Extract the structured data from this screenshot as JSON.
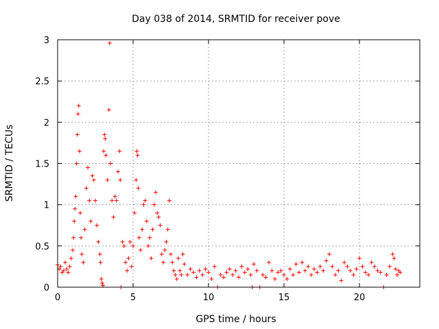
{
  "chart_data": {
    "type": "scatter",
    "title": "Day 038 of 2014, SRMTID for receiver pove",
    "xlabel": "GPS time / hours",
    "ylabel": "SRMTID / TECUs",
    "xlim": [
      0,
      24
    ],
    "ylim": [
      0,
      3
    ],
    "xticks": [
      0,
      5,
      10,
      15,
      20
    ],
    "yticks": [
      0,
      0.5,
      1,
      1.5,
      2,
      2.5,
      3
    ],
    "xtick_labels": [
      "0",
      "5",
      "10",
      "15",
      "20"
    ],
    "ytick_labels": [
      "0",
      "0.5",
      "1",
      "1.5",
      "2",
      "2.5",
      "3"
    ],
    "grid": true,
    "marker": "+",
    "color": "#ff0000",
    "series": [
      {
        "name": "SRMTID",
        "points": [
          [
            0.0,
            0.27
          ],
          [
            0.1,
            0.22
          ],
          [
            0.2,
            0.25
          ],
          [
            0.3,
            0.18
          ],
          [
            0.4,
            0.2
          ],
          [
            0.5,
            0.3
          ],
          [
            0.6,
            0.22
          ],
          [
            0.7,
            0.18
          ],
          [
            0.8,
            0.25
          ],
          [
            0.9,
            0.35
          ],
          [
            1.0,
            0.45
          ],
          [
            1.05,
            0.6
          ],
          [
            1.1,
            0.8
          ],
          [
            1.15,
            0.95
          ],
          [
            1.2,
            1.1
          ],
          [
            1.25,
            1.5
          ],
          [
            1.3,
            1.85
          ],
          [
            1.35,
            2.1
          ],
          [
            1.4,
            2.2
          ],
          [
            1.45,
            1.65
          ],
          [
            1.5,
            0.9
          ],
          [
            1.55,
            0.6
          ],
          [
            1.6,
            0.4
          ],
          [
            1.7,
            0.3
          ],
          [
            1.8,
            0.7
          ],
          [
            1.9,
            1.2
          ],
          [
            2.0,
            1.45
          ],
          [
            2.1,
            1.05
          ],
          [
            2.2,
            0.8
          ],
          [
            2.3,
            1.35
          ],
          [
            2.4,
            1.3
          ],
          [
            2.5,
            1.05
          ],
          [
            2.6,
            0.75
          ],
          [
            2.7,
            0.55
          ],
          [
            2.8,
            0.4
          ],
          [
            2.85,
            0.3
          ],
          [
            2.9,
            0.1
          ],
          [
            2.95,
            0.05
          ],
          [
            3.0,
            0.02
          ],
          [
            3.05,
            1.65
          ],
          [
            3.1,
            1.85
          ],
          [
            3.15,
            1.8
          ],
          [
            3.2,
            1.6
          ],
          [
            3.3,
            1.3
          ],
          [
            3.4,
            2.15
          ],
          [
            3.45,
            2.96
          ],
          [
            3.5,
            1.5
          ],
          [
            3.6,
            1.05
          ],
          [
            3.7,
            0.85
          ],
          [
            3.8,
            1.1
          ],
          [
            3.9,
            1.05
          ],
          [
            4.0,
            1.4
          ],
          [
            4.1,
            1.65
          ],
          [
            4.15,
            1.3
          ],
          [
            4.2,
            0.0
          ],
          [
            4.3,
            0.55
          ],
          [
            4.4,
            0.5
          ],
          [
            4.5,
            0.3
          ],
          [
            4.6,
            0.2
          ],
          [
            4.7,
            0.35
          ],
          [
            4.8,
            0.55
          ],
          [
            4.9,
            0.25
          ],
          [
            5.0,
            0.5
          ],
          [
            5.1,
            0.9
          ],
          [
            5.2,
            1.3
          ],
          [
            5.25,
            1.65
          ],
          [
            5.3,
            1.6
          ],
          [
            5.35,
            1.2
          ],
          [
            5.4,
            0.6
          ],
          [
            5.5,
            0.45
          ],
          [
            5.6,
            0.7
          ],
          [
            5.7,
            1.0
          ],
          [
            5.8,
            1.05
          ],
          [
            5.9,
            0.8
          ],
          [
            6.0,
            0.5
          ],
          [
            6.1,
            0.6
          ],
          [
            6.2,
            0.35
          ],
          [
            6.3,
            0.7
          ],
          [
            6.4,
            1.0
          ],
          [
            6.5,
            1.15
          ],
          [
            6.6,
            0.9
          ],
          [
            6.7,
            0.85
          ],
          [
            6.8,
            0.75
          ],
          [
            6.9,
            0.4
          ],
          [
            7.0,
            0.3
          ],
          [
            7.1,
            0.45
          ],
          [
            7.2,
            0.55
          ],
          [
            7.3,
            0.7
          ],
          [
            7.4,
            1.05
          ],
          [
            7.5,
            0.4
          ],
          [
            7.6,
            0.3
          ],
          [
            7.7,
            0.2
          ],
          [
            7.8,
            0.15
          ],
          [
            7.9,
            0.1
          ],
          [
            8.0,
            0.35
          ],
          [
            8.1,
            0.2
          ],
          [
            8.2,
            0.15
          ],
          [
            8.3,
            0.4
          ],
          [
            8.4,
            0.28
          ],
          [
            8.6,
            0.15
          ],
          [
            8.8,
            0.22
          ],
          [
            9.0,
            0.18
          ],
          [
            9.2,
            0.12
          ],
          [
            9.4,
            0.2
          ],
          [
            9.6,
            0.15
          ],
          [
            9.8,
            0.22
          ],
          [
            10.0,
            0.18
          ],
          [
            10.2,
            0.1
          ],
          [
            10.4,
            0.25
          ],
          [
            10.6,
            0.0
          ],
          [
            10.8,
            0.15
          ],
          [
            11.0,
            0.12
          ],
          [
            11.2,
            0.18
          ],
          [
            11.4,
            0.22
          ],
          [
            11.6,
            0.15
          ],
          [
            11.8,
            0.2
          ],
          [
            12.0,
            0.12
          ],
          [
            12.2,
            0.25
          ],
          [
            12.4,
            0.18
          ],
          [
            12.6,
            0.22
          ],
          [
            12.8,
            0.15
          ],
          [
            12.9,
            0.0
          ],
          [
            13.0,
            0.28
          ],
          [
            13.2,
            0.2
          ],
          [
            13.4,
            0.0
          ],
          [
            13.6,
            0.15
          ],
          [
            13.8,
            0.12
          ],
          [
            14.0,
            0.3
          ],
          [
            14.2,
            0.2
          ],
          [
            14.4,
            0.1
          ],
          [
            14.6,
            0.18
          ],
          [
            14.8,
            0.2
          ],
          [
            15.0,
            0.15
          ],
          [
            15.2,
            0.1
          ],
          [
            15.4,
            0.22
          ],
          [
            15.6,
            0.15
          ],
          [
            15.8,
            0.28
          ],
          [
            16.0,
            0.18
          ],
          [
            16.2,
            0.3
          ],
          [
            16.4,
            0.2
          ],
          [
            16.6,
            0.25
          ],
          [
            16.8,
            0.15
          ],
          [
            17.0,
            0.22
          ],
          [
            17.2,
            0.18
          ],
          [
            17.4,
            0.25
          ],
          [
            17.6,
            0.2
          ],
          [
            17.8,
            0.32
          ],
          [
            18.0,
            0.4
          ],
          [
            18.2,
            0.25
          ],
          [
            18.4,
            0.15
          ],
          [
            18.6,
            0.2
          ],
          [
            18.8,
            0.08
          ],
          [
            19.0,
            0.3
          ],
          [
            19.2,
            0.25
          ],
          [
            19.4,
            0.2
          ],
          [
            19.6,
            0.15
          ],
          [
            19.8,
            0.22
          ],
          [
            20.0,
            0.35
          ],
          [
            20.2,
            0.25
          ],
          [
            20.4,
            0.18
          ],
          [
            20.6,
            0.15
          ],
          [
            20.8,
            0.3
          ],
          [
            21.0,
            0.25
          ],
          [
            21.2,
            0.2
          ],
          [
            21.4,
            0.18
          ],
          [
            21.6,
            0.0
          ],
          [
            21.8,
            0.15
          ],
          [
            22.0,
            0.25
          ],
          [
            22.2,
            0.4
          ],
          [
            22.3,
            0.35
          ],
          [
            22.4,
            0.22
          ],
          [
            22.5,
            0.15
          ],
          [
            22.6,
            0.2
          ],
          [
            22.7,
            0.18
          ]
        ]
      }
    ]
  }
}
